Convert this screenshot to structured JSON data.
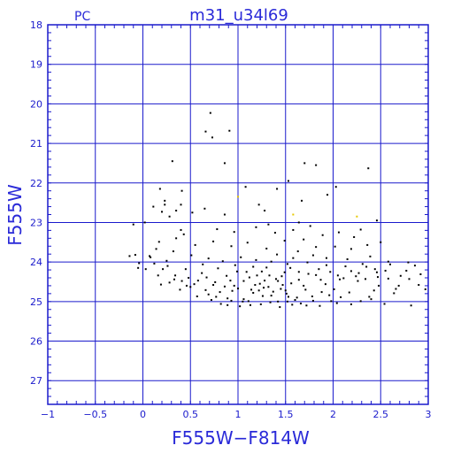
{
  "chart_data": {
    "type": "scatter",
    "title": "m31_u34l69",
    "corner_label": "PC",
    "xlabel": "F555W−F814W",
    "ylabel": "F555W",
    "xlim": [
      -1,
      3
    ],
    "ylim": [
      27.6,
      18
    ],
    "y_inverted": true,
    "grid": true,
    "xticks": [
      -1,
      -0.5,
      0,
      0.5,
      1,
      1.5,
      2,
      2.5,
      3
    ],
    "xtick_labels": [
      "−1",
      "−0.5",
      "0",
      "0.5",
      "1",
      "1.5",
      "2",
      "2.5",
      "3"
    ],
    "yticks": [
      18,
      19,
      20,
      21,
      22,
      23,
      24,
      25,
      26,
      27
    ],
    "ytick_labels": [
      "18",
      "19",
      "20",
      "21",
      "22",
      "23",
      "24",
      "25",
      "26",
      "27"
    ],
    "colors": {
      "axes": "#1a1acc",
      "points": "#000000",
      "highlight": "#e6c800"
    },
    "highlighted_points": [
      [
        1.0,
        22.35
      ],
      [
        1.58,
        22.8
      ],
      [
        2.25,
        22.85
      ]
    ],
    "points": [
      [
        0.71,
        20.23
      ],
      [
        0.66,
        20.7
      ],
      [
        0.73,
        20.85
      ],
      [
        0.91,
        20.68
      ],
      [
        0.86,
        21.5
      ],
      [
        0.31,
        21.45
      ],
      [
        1.7,
        21.5
      ],
      [
        1.82,
        21.55
      ],
      [
        2.37,
        21.63
      ],
      [
        1.53,
        21.95
      ],
      [
        0.18,
        22.15
      ],
      [
        1.08,
        22.1
      ],
      [
        1.41,
        22.15
      ],
      [
        2.03,
        22.1
      ],
      [
        0.41,
        22.2
      ],
      [
        1.67,
        22.45
      ],
      [
        0.23,
        22.45
      ],
      [
        0.4,
        22.55
      ],
      [
        0.65,
        22.65
      ],
      [
        0.52,
        22.75
      ],
      [
        2.46,
        22.95
      ],
      [
        1.22,
        22.55
      ],
      [
        1.28,
        22.7
      ],
      [
        1.64,
        23.0
      ],
      [
        1.32,
        23.05
      ],
      [
        0.86,
        22.8
      ],
      [
        0.35,
        22.7
      ],
      [
        1.94,
        22.3
      ],
      [
        0.02,
        23.0
      ],
      [
        -0.1,
        23.05
      ],
      [
        -0.14,
        23.85
      ],
      [
        -0.08,
        23.82
      ],
      [
        -0.04,
        24.03
      ],
      [
        -0.05,
        24.15
      ],
      [
        2.5,
        23.5
      ],
      [
        2.22,
        23.37
      ],
      [
        1.93,
        23.9
      ],
      [
        0.11,
        22.6
      ],
      [
        0.23,
        22.55
      ],
      [
        0.2,
        22.73
      ],
      [
        0.4,
        23.19
      ],
      [
        0.43,
        23.3
      ],
      [
        0.28,
        22.85
      ],
      [
        0.26,
        24.1
      ],
      [
        0.62,
        24.28
      ],
      [
        0.76,
        24.51
      ],
      [
        0.89,
        24.92
      ],
      [
        1.06,
        24.94
      ],
      [
        1.22,
        24.72
      ],
      [
        1.45,
        24.68
      ],
      [
        1.62,
        24.9
      ],
      [
        1.88,
        24.76
      ],
      [
        2.01,
        24.69
      ],
      [
        2.26,
        24.48
      ],
      [
        2.48,
        24.6
      ],
      [
        2.69,
        24.6
      ],
      [
        0.5,
        24.63
      ],
      [
        1.23,
        24.55
      ],
      [
        1.27,
        24.65
      ],
      [
        1.37,
        24.75
      ],
      [
        1.56,
        24.54
      ],
      [
        1.2,
        24.34
      ],
      [
        0.99,
        24.24
      ],
      [
        1.55,
        24.15
      ],
      [
        1.74,
        24.3
      ],
      [
        2.07,
        24.44
      ],
      [
        2.34,
        24.43
      ],
      [
        2.46,
        24.26
      ],
      [
        0.77,
        24.88
      ],
      [
        0.94,
        24.73
      ],
      [
        1.32,
        24.63
      ],
      [
        1.05,
        25.0
      ],
      [
        1.42,
        25.0
      ],
      [
        1.6,
        24.96
      ],
      [
        1.79,
        24.98
      ],
      [
        2.08,
        24.89
      ],
      [
        2.38,
        24.88
      ],
      [
        2.64,
        24.79
      ],
      [
        0.92,
        24.47
      ],
      [
        1.12,
        24.39
      ],
      [
        1.33,
        24.34
      ],
      [
        1.49,
        24.26
      ],
      [
        1.82,
        24.33
      ],
      [
        1.97,
        24.25
      ],
      [
        2.19,
        24.23
      ],
      [
        2.35,
        24.12
      ],
      [
        2.6,
        24.06
      ],
      [
        1.26,
        24.86
      ],
      [
        1.51,
        24.8
      ],
      [
        1.71,
        24.7
      ],
      [
        1.92,
        24.56
      ],
      [
        2.11,
        24.41
      ],
      [
        2.27,
        24.28
      ],
      [
        2.44,
        24.18
      ],
      [
        2.77,
        24.22
      ],
      [
        1.4,
        24.43
      ],
      [
        1.18,
        24.58
      ],
      [
        1.0,
        24.67
      ],
      [
        0.81,
        24.76
      ],
      [
        0.66,
        24.71
      ],
      [
        0.88,
        24.35
      ],
      [
        1.09,
        24.25
      ],
      [
        1.3,
        24.14
      ],
      [
        1.52,
        24.05
      ],
      [
        1.73,
        24.01
      ],
      [
        1.93,
        24.08
      ],
      [
        2.15,
        23.93
      ],
      [
        2.39,
        23.86
      ],
      [
        2.58,
        23.99
      ],
      [
        0.48,
        24.4
      ],
      [
        0.58,
        24.47
      ],
      [
        0.45,
        24.18
      ],
      [
        0.34,
        24.34
      ],
      [
        0.21,
        24.18
      ],
      [
        0.12,
        24.04
      ],
      [
        0.07,
        23.85
      ],
      [
        0.14,
        23.67
      ],
      [
        0.32,
        23.73
      ],
      [
        0.51,
        23.83
      ],
      [
        0.69,
        23.91
      ],
      [
        0.84,
        23.98
      ],
      [
        1.03,
        23.88
      ],
      [
        1.19,
        23.95
      ],
      [
        1.41,
        23.81
      ],
      [
        1.63,
        23.73
      ],
      [
        1.82,
        23.62
      ],
      [
        2.02,
        23.61
      ],
      [
        2.19,
        23.67
      ],
      [
        2.36,
        23.57
      ],
      [
        0.28,
        24.52
      ],
      [
        0.41,
        24.48
      ],
      [
        0.54,
        24.56
      ],
      [
        0.74,
        24.58
      ],
      [
        0.96,
        24.6
      ],
      [
        1.16,
        24.78
      ],
      [
        1.35,
        24.85
      ],
      [
        1.53,
        24.88
      ],
      [
        1.78,
        24.87
      ],
      [
        1.96,
        24.84
      ],
      [
        2.17,
        24.77
      ],
      [
        2.43,
        24.72
      ],
      [
        2.58,
        24.42
      ],
      [
        2.8,
        24.43
      ],
      [
        2.9,
        24.58
      ],
      [
        2.97,
        24.69
      ],
      [
        1.46,
        24.36
      ],
      [
        1.64,
        24.45
      ],
      [
        1.87,
        24.45
      ],
      [
        2.05,
        24.34
      ],
      [
        2.24,
        24.36
      ],
      [
        2.47,
        24.38
      ],
      [
        2.71,
        24.35
      ],
      [
        2.86,
        24.09
      ],
      [
        0.82,
        25.06
      ],
      [
        1.02,
        25.12
      ],
      [
        1.24,
        25.07
      ],
      [
        1.44,
        25.14
      ],
      [
        1.66,
        25.05
      ],
      [
        1.86,
        25.11
      ],
      [
        2.04,
        25.04
      ],
      [
        2.29,
        24.99
      ],
      [
        2.54,
        25.06
      ],
      [
        2.82,
        25.1
      ],
      [
        1.11,
        24.99
      ],
      [
        1.34,
        25.02
      ],
      [
        1.57,
        25.08
      ],
      [
        0.93,
        24.98
      ],
      [
        0.72,
        24.96
      ],
      [
        0.57,
        24.87
      ],
      [
        0.39,
        24.7
      ],
      [
        0.19,
        24.57
      ],
      [
        1.28,
        24.47
      ],
      [
        1.47,
        24.58
      ],
      [
        1.69,
        24.6
      ],
      [
        1.16,
        24.12
      ],
      [
        0.97,
        24.08
      ],
      [
        0.79,
        24.16
      ],
      [
        0.63,
        24.06
      ],
      [
        1.35,
        23.99
      ],
      [
        1.58,
        23.9
      ],
      [
        1.79,
        23.83
      ],
      [
        0.25,
        23.97
      ],
      [
        0.08,
        23.88
      ],
      [
        0.17,
        23.49
      ],
      [
        0.35,
        23.4
      ],
      [
        0.55,
        23.57
      ],
      [
        0.74,
        23.48
      ],
      [
        0.93,
        23.6
      ],
      [
        1.1,
        23.51
      ],
      [
        1.3,
        23.66
      ],
      [
        1.49,
        23.46
      ],
      [
        1.69,
        23.43
      ],
      [
        1.89,
        23.32
      ],
      [
        2.06,
        23.25
      ],
      [
        2.29,
        23.18
      ],
      [
        1.39,
        23.26
      ],
      [
        1.58,
        23.19
      ],
      [
        1.76,
        23.09
      ],
      [
        1.19,
        23.12
      ],
      [
        0.96,
        23.24
      ],
      [
        0.78,
        23.17
      ],
      [
        1.5,
        24.72
      ],
      [
        1.14,
        24.7
      ],
      [
        0.86,
        24.62
      ],
      [
        0.67,
        24.39
      ],
      [
        1.06,
        24.48
      ],
      [
        1.42,
        24.48
      ],
      [
        1.25,
        24.24
      ],
      [
        1.64,
        24.25
      ],
      [
        1.85,
        24.18
      ],
      [
        2.13,
        24.11
      ],
      [
        2.31,
        24.05
      ],
      [
        2.55,
        24.22
      ],
      [
        2.79,
        24.01
      ],
      [
        2.92,
        24.31
      ],
      [
        2.66,
        24.68
      ],
      [
        2.4,
        24.94
      ],
      [
        2.19,
        25.07
      ],
      [
        1.98,
        24.99
      ],
      [
        1.72,
        25.1
      ],
      [
        1.52,
        25.0
      ],
      [
        1.13,
        25.09
      ],
      [
        0.89,
        25.09
      ],
      [
        0.69,
        24.82
      ],
      [
        0.46,
        24.6
      ],
      [
        0.33,
        24.44
      ],
      [
        0.16,
        24.34
      ],
      [
        0.03,
        24.18
      ]
    ]
  }
}
